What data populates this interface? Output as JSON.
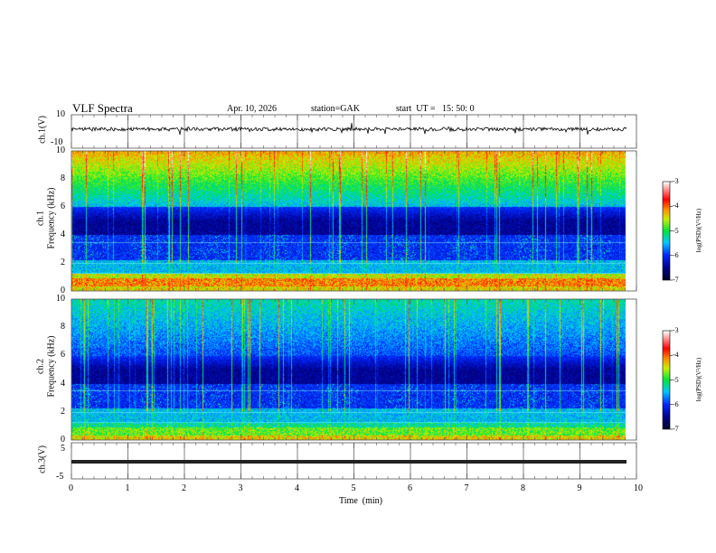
{
  "header": {
    "title": "VLF Spectra",
    "date": "Apr. 10, 2026",
    "station": "station=GAK",
    "start": "start  UT =   15: 50: 0"
  },
  "panels": {
    "ch1_wave": {
      "ylabel": "ch.1(V)",
      "yticks": [
        "10",
        "-10"
      ],
      "ylim": [
        -10,
        10
      ]
    },
    "ch1_spec": {
      "ylabel": "ch.1\nFrequency (kHz)",
      "ylabel_a": "ch.1",
      "ylabel_b": "Frequency  (kHz)",
      "yticks": [
        "10",
        "8",
        "6",
        "4",
        "2",
        "0"
      ],
      "ylim": [
        0,
        10
      ]
    },
    "ch2_spec": {
      "ylabel_a": "ch.2",
      "ylabel_b": "Frequency  (kHz)",
      "yticks": [
        "10",
        "8",
        "6",
        "4",
        "2",
        "0"
      ],
      "ylim": [
        0,
        10
      ]
    },
    "ch3_wave": {
      "ylabel": "ch.3(V)",
      "yticks": [
        "5",
        "-5"
      ],
      "ylim": [
        -5,
        5
      ],
      "level": 0
    }
  },
  "colorbar": {
    "label": "log(PSD)(V²/Hz)",
    "ticks": [
      "-3",
      "-4",
      "-5",
      "-6",
      "-7"
    ],
    "range": [
      -7,
      -3
    ]
  },
  "chart_data": {
    "type": "heatmap",
    "title": "VLF Spectra",
    "xlabel": "Time  (min)",
    "xticks": [
      "0",
      "1",
      "2",
      "3",
      "4",
      "5",
      "6",
      "7",
      "8",
      "9",
      "10"
    ],
    "xlim": [
      0,
      10
    ],
    "data_end_min": 9.82
  }
}
